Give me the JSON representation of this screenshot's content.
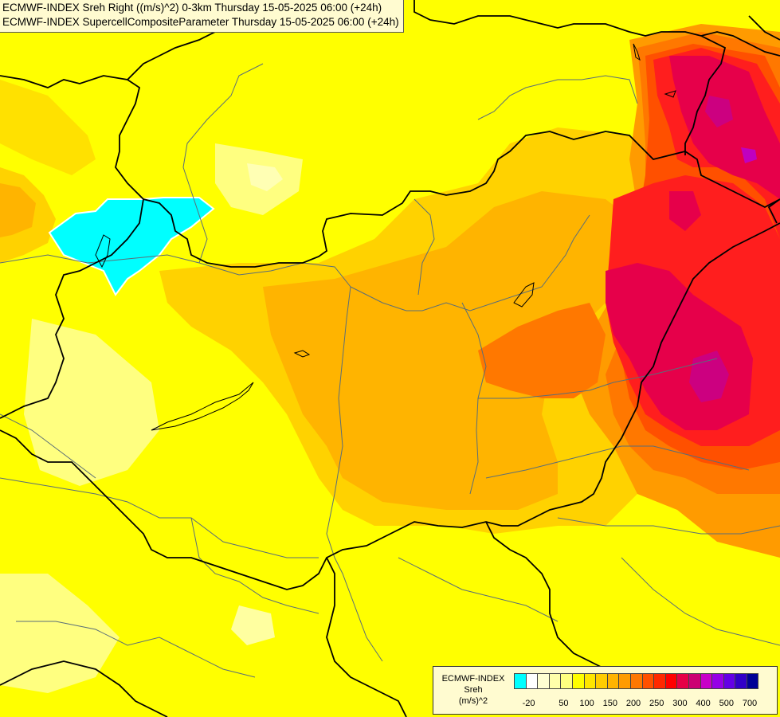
{
  "header": {
    "line1": "ECMWF-INDEX Sreh Right ((m/s)^2) 0-3km Thursday 15-05-2025 06:00 (+24h)",
    "line2": "ECMWF-INDEX SupercellCompositeParameter Thursday 15-05-2025 06:00 (+24h)"
  },
  "legend": {
    "title": "ECMWF-INDEX",
    "variable": "Sreh",
    "unit": "(m/s)^2",
    "colors": [
      "#00ffff",
      "#ffffff",
      "#ffffd2",
      "#ffffaa",
      "#ffff80",
      "#ffff00",
      "#ffe600",
      "#ffcc00",
      "#ffb400",
      "#ff9b00",
      "#ff7800",
      "#ff5000",
      "#ff2800",
      "#ff0000",
      "#e60046",
      "#cc0073",
      "#c800c8",
      "#9600e6",
      "#6400e6",
      "#3200c8",
      "#000096"
    ],
    "ticks": [
      "-20",
      "50",
      "100",
      "150",
      "200",
      "250",
      "300",
      "400",
      "500",
      "700"
    ]
  },
  "map_colors": {
    "cyan_patch": "#00ffff",
    "pale_yellow": "#ffff96",
    "yellow": "#ffff00",
    "gold": "#ffd700",
    "orange_light": "#ffc000",
    "orange": "#ffa500",
    "dark_orange": "#ff7f00",
    "red_orange": "#ff4500",
    "red": "#ff1a1a",
    "crimson": "#e0004a",
    "magenta": "#cc0080",
    "purple": "#c000c0",
    "border_color": "#000000",
    "river_color": "#5a6e78"
  }
}
